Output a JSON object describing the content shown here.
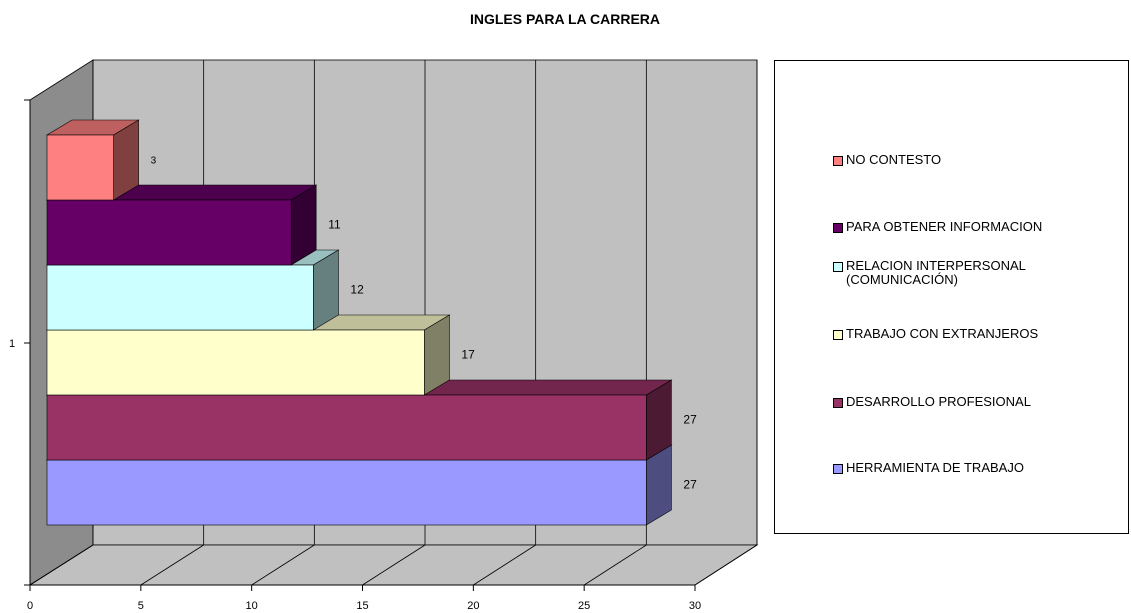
{
  "chart_data": {
    "type": "bar3d_horizontal",
    "title": "INGLES PARA LA CARRERA",
    "categories": [
      "1"
    ],
    "series": [
      {
        "name": "HERRAMIENTA DE TRABAJO",
        "color": "#9999ff",
        "values": [
          27
        ]
      },
      {
        "name": "DESARROLLO PROFESIONAL",
        "color": "#993366",
        "values": [
          27
        ]
      },
      {
        "name": "TRABAJO CON EXTRANJEROS",
        "color": "#ffffcc",
        "values": [
          17
        ]
      },
      {
        "name": "RELACION INTERPERSONAL (COMUNICACIÓN)",
        "color": "#ccffff",
        "values": [
          12
        ]
      },
      {
        "name": "PARA OBTENER INFORMACION",
        "color": "#660066",
        "values": [
          11
        ]
      },
      {
        "name": "NO CONTESTO",
        "color": "#ff8080",
        "values": [
          3
        ]
      }
    ],
    "xlim": [
      0,
      30
    ],
    "xticks": [
      0,
      5,
      10,
      15,
      20,
      25,
      30
    ],
    "grid": true,
    "legend": "right"
  }
}
